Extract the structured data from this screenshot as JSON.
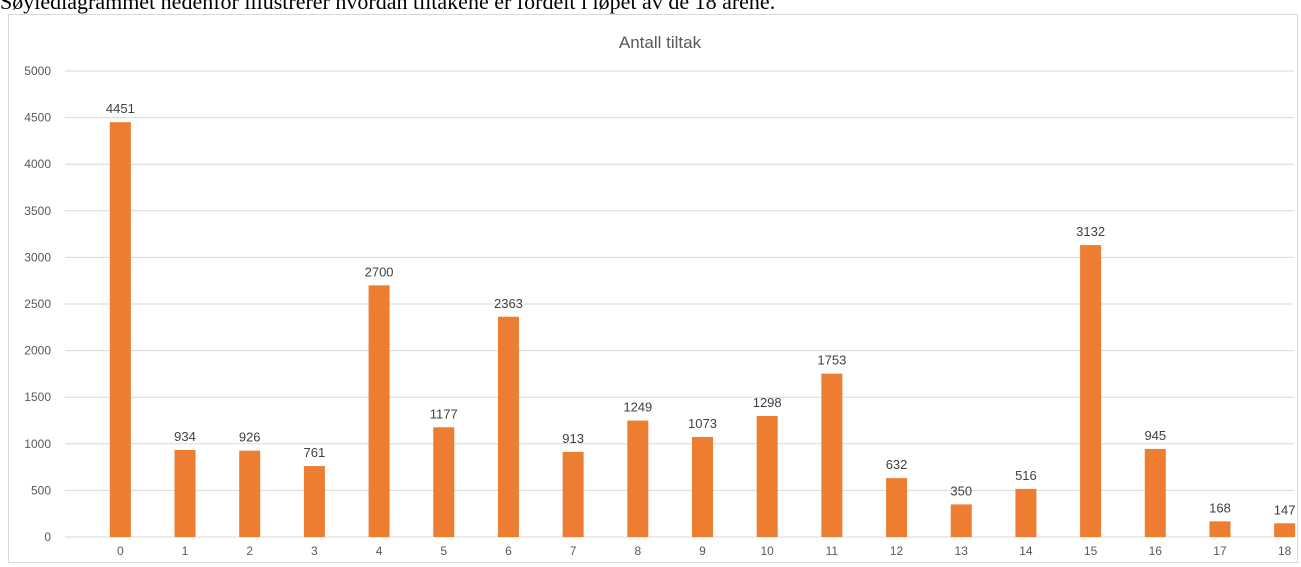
{
  "caption": "Søylediagrammet nedenfor illustrerer hvordan tiltakene er fordelt i løpet av de 18 årene.",
  "chart_data": {
    "type": "bar",
    "title": "Antall tiltak",
    "categories": [
      "0",
      "1",
      "2",
      "3",
      "4",
      "5",
      "6",
      "7",
      "8",
      "9",
      "10",
      "11",
      "12",
      "13",
      "14",
      "15",
      "16",
      "17",
      "18"
    ],
    "values": [
      4451,
      934,
      926,
      761,
      2700,
      1177,
      2363,
      913,
      1249,
      1073,
      1298,
      1753,
      632,
      350,
      516,
      3132,
      945,
      168,
      147
    ],
    "y_ticks": [
      "0",
      "500",
      "1000",
      "1500",
      "2000",
      "2500",
      "3000",
      "3500",
      "4000",
      "4500",
      "5000"
    ],
    "ylim": [
      0,
      5000
    ],
    "xlabel": "",
    "ylabel": "",
    "grid": true,
    "legend": "none",
    "data_labels": true,
    "colors": {
      "bar": "#ed7d31",
      "grid": "#d9d9d9",
      "axis_text": "#595959",
      "title": "#595959",
      "label": "#404040"
    }
  }
}
